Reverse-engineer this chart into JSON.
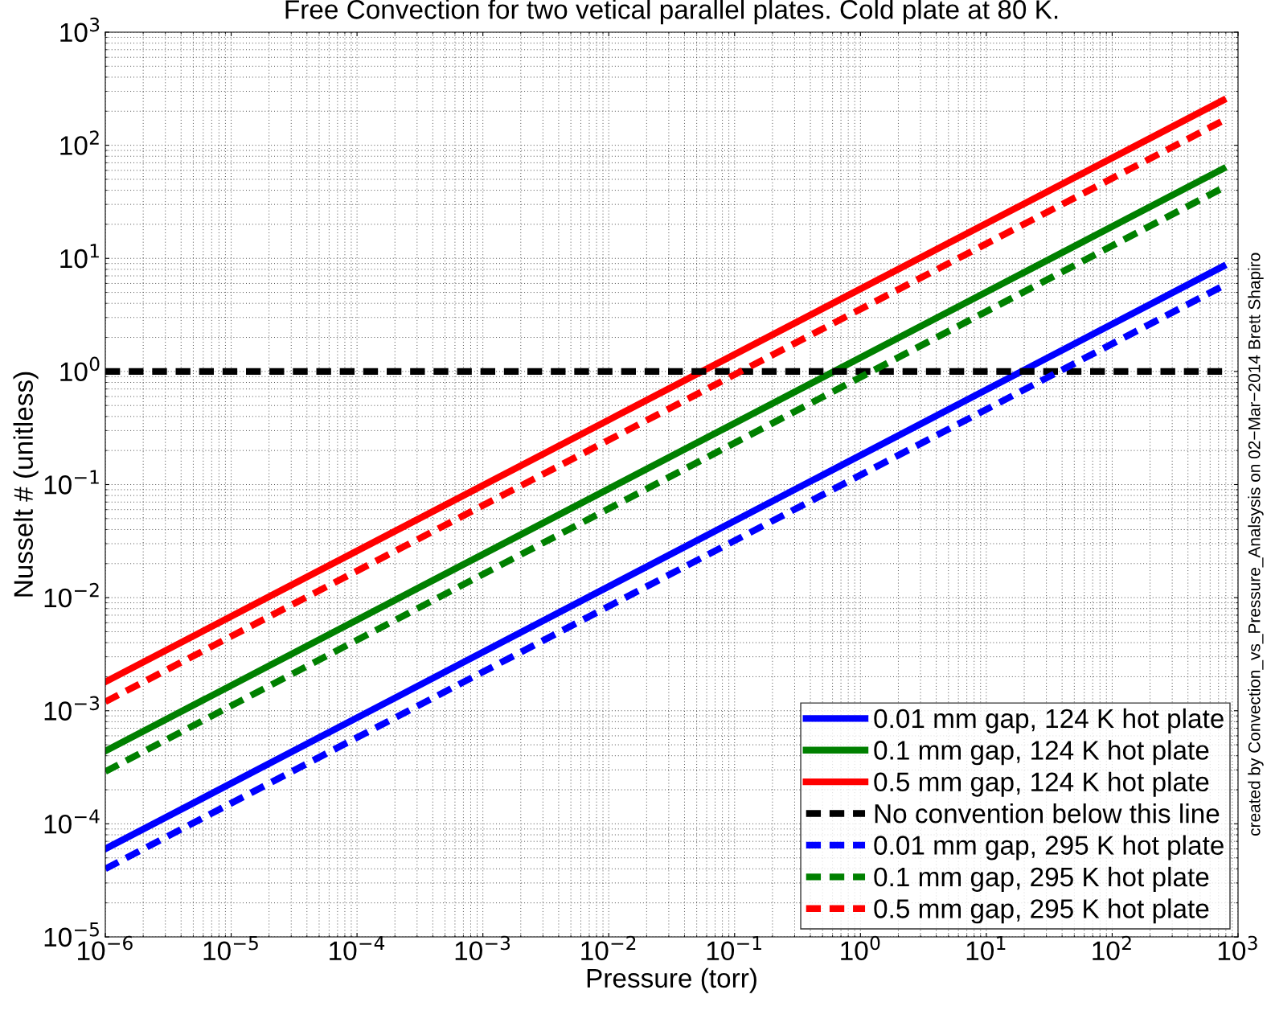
{
  "chart_data": {
    "type": "line",
    "title": "Free Convection for two vetical parallel plates. Cold plate at 80 K.",
    "xlabel": "Pressure (torr)",
    "ylabel": "Nusselt # (unitless)",
    "annotations": [
      "created by Convection_vs_Pressure_Analsysis on 02−Mar−2014 Brett Shapiro"
    ],
    "x": [
      1e-06,
      760
    ],
    "log": "xy",
    "grid": true,
    "legend": "bottom right",
    "xlim": [
      1e-06,
      1000
    ],
    "ylim": [
      1e-05,
      1000
    ],
    "xticks": [
      {
        "value": 1e-06,
        "label": "10$^{−6}$"
      },
      {
        "value": 1e-05,
        "label": "10$^{−5}$"
      },
      {
        "value": 0.0001,
        "label": "10$^{−4}$"
      },
      {
        "value": 0.001,
        "label": "10$^{−3}$"
      },
      {
        "value": 0.01,
        "label": "10$^{−2}$"
      },
      {
        "value": 0.1,
        "label": "10$^{−1}$"
      },
      {
        "value": 1,
        "label": "10$^{0}$"
      },
      {
        "value": 10,
        "label": "10$^{1}$"
      },
      {
        "value": 100,
        "label": "10$^{2}$"
      },
      {
        "value": 1000,
        "label": "10$^{3}$"
      }
    ],
    "yticks": [
      {
        "value": 1e-05,
        "label": "10$^{−5}$"
      },
      {
        "value": 0.0001,
        "label": "10$^{−4}$"
      },
      {
        "value": 0.001,
        "label": "10$^{−3}$"
      },
      {
        "value": 0.01,
        "label": "10$^{−2}$"
      },
      {
        "value": 0.1,
        "label": "10$^{−1}$"
      },
      {
        "value": 1,
        "label": "10$^{0}$"
      },
      {
        "value": 10,
        "label": "10$^{1}$"
      },
      {
        "value": 100,
        "label": "10$^{2}$"
      },
      {
        "value": 1000,
        "label": "10$^{3}$"
      }
    ],
    "series": [
      {
        "name": "0.01 mm gap, 124 K hot plate",
        "color": "#0000ff",
        "line_style": "solid",
        "values": [
          6e-05,
          8.5
        ]
      },
      {
        "name": "0.1 mm gap, 124 K hot plate",
        "color": "#008000",
        "line_style": "solid",
        "values": [
          0.00044,
          62
        ]
      },
      {
        "name": "0.5 mm gap, 124 K hot plate",
        "color": "#ff0000",
        "line_style": "solid",
        "values": [
          0.0018,
          250
        ]
      },
      {
        "name": "No convention below this line",
        "color": "#000000",
        "line_style": "dashed",
        "values": [
          1,
          1
        ]
      },
      {
        "name": "0.01 mm gap, 295 K hot plate",
        "color": "#0000ff",
        "line_style": "dashed",
        "values": [
          4e-05,
          5.7
        ]
      },
      {
        "name": "0.1 mm gap, 295 K hot plate",
        "color": "#008000",
        "line_style": "dashed",
        "values": [
          0.00029,
          42
        ]
      },
      {
        "name": "0.5 mm gap, 295 K hot plate",
        "color": "#ff0000",
        "line_style": "dashed",
        "values": [
          0.0012,
          165
        ]
      }
    ]
  }
}
